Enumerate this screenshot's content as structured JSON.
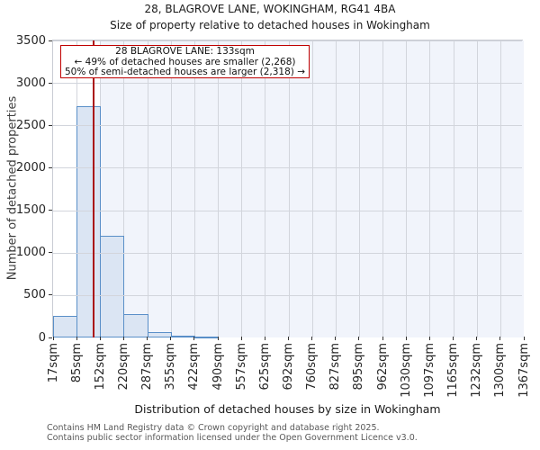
{
  "title_line1": "28, BLAGROVE LANE, WOKINGHAM, RG41 4BA",
  "title_line2": "Size of property relative to detached houses in Wokingham",
  "annotation": {
    "line1": "28 BLAGROVE LANE: 133sqm",
    "line2": "← 49% of detached houses are smaller (2,268)",
    "line3": "50% of semi-detached houses are larger (2,318) →"
  },
  "footer": {
    "line1": "Contains HM Land Registry data © Crown copyright and database right 2025.",
    "line2": "Contains public sector information licensed under the Open Government Licence v3.0."
  },
  "chart_data": {
    "type": "bar",
    "title": "28, BLAGROVE LANE, WOKINGHAM, RG41 4BA — Size of property relative to detached houses in Wokingham",
    "xlabel": "Distribution of detached houses by size in Wokingham",
    "ylabel": "Number of detached properties",
    "categories": [
      "17sqm",
      "85sqm",
      "152sqm",
      "220sqm",
      "287sqm",
      "355sqm",
      "422sqm",
      "490sqm",
      "557sqm",
      "625sqm",
      "692sqm",
      "760sqm",
      "827sqm",
      "895sqm",
      "962sqm",
      "1030sqm",
      "1097sqm",
      "1165sqm",
      "1232sqm",
      "1300sqm",
      "1367sqm"
    ],
    "values": [
      250,
      2730,
      1200,
      280,
      60,
      25,
      10,
      0,
      0,
      0,
      0,
      0,
      0,
      0,
      0,
      0,
      0,
      0,
      0,
      0
    ],
    "ylim": [
      0,
      3500
    ],
    "yticks": [
      0,
      500,
      1000,
      1500,
      2000,
      2500,
      3000,
      3500
    ],
    "grid": true,
    "legend": false,
    "marker_value_sqm": 133,
    "x_range_sqm": [
      17,
      1367
    ],
    "shade_from_bin": 2,
    "colors": {
      "bar_fill": "#dbe5f3",
      "bar_edge": "#5a8fc8",
      "marker_line": "#aa1111",
      "annotation_border": "#c00000",
      "shade_bg": "#f1f4fb",
      "grid_line": "#d2d5dc",
      "footer_text": "#585858"
    }
  }
}
